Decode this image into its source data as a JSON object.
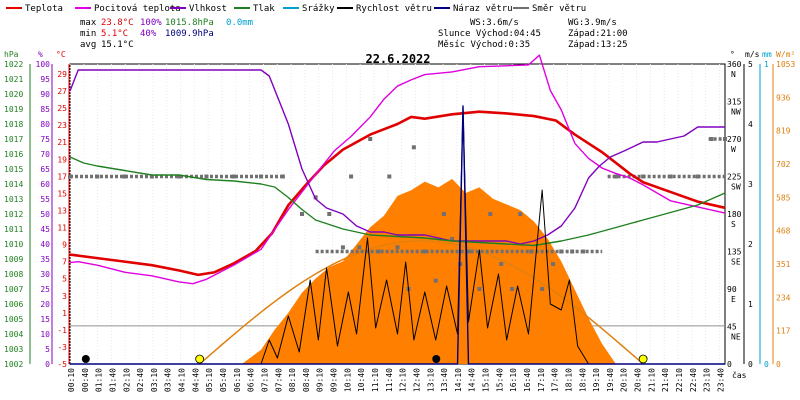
{
  "legend": [
    {
      "label": "Teplota",
      "color": "#e00000"
    },
    {
      "label": "Pocitová teplota",
      "color": "#e000e0"
    },
    {
      "label": "Vlhkost",
      "color": "#8000c0"
    },
    {
      "label": "Tlak",
      "color": "#208020"
    },
    {
      "label": "Srážky",
      "color": "#00a0d0"
    },
    {
      "label": "Rychlost větru",
      "color": "#000000"
    },
    {
      "label": "Náraz větru",
      "color": "#000080"
    },
    {
      "label": "Směr větru",
      "color": "#707070"
    }
  ],
  "stats": {
    "max_label": "max",
    "max_temp": "23.8°C",
    "max_hum": "100%",
    "max_press": "1015.8hPa",
    "max_rain": "0.0mm",
    "min_label": "min",
    "min_temp": "5.1°C",
    "min_hum": "40%",
    "min_press": "1009.9hPa",
    "avg_label": "avg",
    "avg_temp": "15.1°C"
  },
  "info": {
    "ws": "WS:3.6m/s",
    "wg": "WG:3.9m/s",
    "sun": "Slunce Východ:04:45",
    "sun_set": "Západ:21:00",
    "moon": "Měsíc Východ:0:35",
    "moon_set": "Západ:13:25"
  },
  "date_title": "22.6.2022",
  "axis_units": {
    "hpa": "hPa",
    "pct": "%",
    "degc": "°C",
    "deg": "°",
    "ms": "m/s",
    "mm": "mm",
    "wm2": "W/m²",
    "time": "čas"
  },
  "axes": {
    "pressure_ticks": [
      "1022",
      "1021",
      "1020",
      "1019",
      "1018",
      "1017",
      "1016",
      "1015",
      "1014",
      "1013",
      "1012",
      "1011",
      "1010",
      "1009",
      "1008",
      "1007",
      "1006",
      "1005",
      "1004",
      "1003",
      "1002"
    ],
    "humidity_ticks": [
      "100",
      "95",
      "90",
      "85",
      "80",
      "75",
      "70",
      "65",
      "60",
      "55",
      "50",
      "45",
      "40",
      "35",
      "30",
      "25",
      "20",
      "15",
      "10",
      "5",
      "0"
    ],
    "temp_ticks": [
      "29",
      "27",
      "25",
      "23",
      "21",
      "19",
      "17",
      "15",
      "13",
      "11",
      "9",
      "7",
      "5",
      "3",
      "1",
      "-1",
      "-3",
      "-5"
    ],
    "dir_ticks": [
      {
        "v": "360",
        "d": "N"
      },
      {
        "v": "315",
        "d": "NW"
      },
      {
        "v": "270",
        "d": "W"
      },
      {
        "v": "225",
        "d": "SW"
      },
      {
        "v": "180",
        "d": "S"
      },
      {
        "v": "135",
        "d": "SE"
      },
      {
        "v": "90",
        "d": "E"
      },
      {
        "v": "45",
        "d": "NE"
      },
      {
        "v": "0",
        "d": ""
      }
    ],
    "wind_ticks": [
      "5",
      "4",
      "3",
      "2",
      "1",
      "0"
    ],
    "rain_ticks": [
      "1",
      "0"
    ],
    "solar_ticks": [
      "1053",
      "936",
      "819",
      "702",
      "585",
      "468",
      "351",
      "234",
      "117",
      "0"
    ],
    "time_ticks": [
      "00:10",
      "00:40",
      "01:10",
      "01:40",
      "02:10",
      "02:40",
      "03:10",
      "03:40",
      "04:10",
      "04:40",
      "05:10",
      "05:40",
      "06:10",
      "06:40",
      "07:10",
      "07:40",
      "08:10",
      "08:40",
      "09:10",
      "09:40",
      "10:10",
      "10:40",
      "11:10",
      "11:40",
      "12:10",
      "12:40",
      "13:10",
      "13:40",
      "14:10",
      "14:40",
      "15:10",
      "15:40",
      "16:10",
      "16:40",
      "17:10",
      "17:40",
      "18:10",
      "18:40",
      "19:10",
      "19:40",
      "20:10",
      "20:40",
      "21:10",
      "21:40",
      "22:10",
      "22:40",
      "23:10",
      "23:40"
    ]
  },
  "chart_data": {
    "type": "line",
    "title": "22.6.2022",
    "x_unit": "hour",
    "xlim": [
      0,
      24
    ],
    "ylim_temp": [
      -5,
      29
    ],
    "ylim_humidity": [
      0,
      100
    ],
    "ylim_pressure": [
      1002,
      1022
    ],
    "ylim_wind": [
      0,
      5
    ],
    "ylim_direction": [
      0,
      360
    ],
    "ylim_solar": [
      0,
      1053
    ],
    "series": [
      {
        "name": "Teplota",
        "axis": "temp",
        "color": "#e00000",
        "points": [
          [
            0,
            7.4
          ],
          [
            1,
            7
          ],
          [
            2,
            6.6
          ],
          [
            3,
            6.2
          ],
          [
            4,
            5.6
          ],
          [
            4.7,
            5.1
          ],
          [
            5.3,
            5.4
          ],
          [
            6,
            6.4
          ],
          [
            6.8,
            7.8
          ],
          [
            7.4,
            9.8
          ],
          [
            8,
            13
          ],
          [
            8.7,
            15.5
          ],
          [
            9.3,
            17.5
          ],
          [
            10,
            19.3
          ],
          [
            11,
            21
          ],
          [
            12,
            22.2
          ],
          [
            12.5,
            23
          ],
          [
            13,
            22.8
          ],
          [
            14,
            23.3
          ],
          [
            15,
            23.6
          ],
          [
            16,
            23.4
          ],
          [
            17,
            23.1
          ],
          [
            17.8,
            22.6
          ],
          [
            18.5,
            21
          ],
          [
            19,
            20
          ],
          [
            19.5,
            19
          ],
          [
            20,
            17.8
          ],
          [
            20.5,
            16.6
          ],
          [
            21,
            15.6
          ],
          [
            22,
            14.5
          ],
          [
            23,
            13.4
          ],
          [
            24,
            12.7
          ]
        ]
      },
      {
        "name": "Pocitová teplota",
        "axis": "temp",
        "color": "#e000e0",
        "points": [
          [
            0,
            6.5
          ],
          [
            0.3,
            6.6
          ],
          [
            1,
            6.2
          ],
          [
            2,
            5.4
          ],
          [
            3,
            5
          ],
          [
            4,
            4.3
          ],
          [
            4.5,
            4.1
          ],
          [
            5,
            4.6
          ],
          [
            6,
            6.2
          ],
          [
            7,
            8
          ],
          [
            8,
            12.5
          ],
          [
            9,
            16.5
          ],
          [
            9.7,
            19.2
          ],
          [
            10.3,
            20.8
          ],
          [
            11,
            23
          ],
          [
            11.5,
            25
          ],
          [
            12,
            26.5
          ],
          [
            12.5,
            27.2
          ],
          [
            13,
            27.8
          ],
          [
            14,
            28.1
          ],
          [
            15,
            28.7
          ],
          [
            16,
            28.8
          ],
          [
            16.8,
            28.9
          ],
          [
            17.2,
            30
          ],
          [
            17.6,
            26
          ],
          [
            18,
            23.8
          ],
          [
            18.5,
            20
          ],
          [
            19,
            18.3
          ],
          [
            19.5,
            17.2
          ],
          [
            20,
            16.6
          ],
          [
            20.5,
            16.1
          ],
          [
            21,
            15.3
          ],
          [
            22,
            13.5
          ],
          [
            23,
            12.8
          ],
          [
            24,
            12.1
          ]
        ]
      },
      {
        "name": "Vlhkost",
        "axis": "humidity",
        "color": "#8000c0",
        "points": [
          [
            0,
            91
          ],
          [
            0.3,
            98
          ],
          [
            1,
            98
          ],
          [
            2,
            98
          ],
          [
            3,
            98
          ],
          [
            4,
            98
          ],
          [
            5,
            98
          ],
          [
            6,
            98
          ],
          [
            7,
            98
          ],
          [
            7.3,
            96
          ],
          [
            8,
            80
          ],
          [
            8.5,
            65
          ],
          [
            9,
            55
          ],
          [
            9.4,
            52
          ],
          [
            10,
            50
          ],
          [
            10.5,
            46
          ],
          [
            11,
            44
          ],
          [
            11.5,
            44
          ],
          [
            12,
            43
          ],
          [
            13,
            43
          ],
          [
            14,
            41
          ],
          [
            15,
            41
          ],
          [
            16,
            41
          ],
          [
            16.5,
            40
          ],
          [
            17,
            41
          ],
          [
            17.5,
            43
          ],
          [
            18,
            46
          ],
          [
            18.5,
            52
          ],
          [
            19,
            62
          ],
          [
            19.4,
            66
          ],
          [
            19.8,
            69
          ],
          [
            20.3,
            71
          ],
          [
            21,
            74
          ],
          [
            21.5,
            74
          ],
          [
            22,
            75
          ],
          [
            22.5,
            76
          ],
          [
            23,
            79
          ],
          [
            23.5,
            79
          ],
          [
            24,
            79
          ]
        ]
      },
      {
        "name": "Tlak",
        "axis": "pressure",
        "color": "#208020",
        "points": [
          [
            0,
            1015.8
          ],
          [
            0.5,
            1015.4
          ],
          [
            1,
            1015.2
          ],
          [
            2,
            1014.9
          ],
          [
            3,
            1014.6
          ],
          [
            4,
            1014.6
          ],
          [
            5,
            1014.3
          ],
          [
            6,
            1014.2
          ],
          [
            7,
            1014
          ],
          [
            7.5,
            1013.8
          ],
          [
            8,
            1013.1
          ],
          [
            8.5,
            1012.3
          ],
          [
            9,
            1011.6
          ],
          [
            9.5,
            1011.3
          ],
          [
            10,
            1011
          ],
          [
            11,
            1010.6
          ],
          [
            12,
            1010.5
          ],
          [
            13,
            1010.4
          ],
          [
            14,
            1010.2
          ],
          [
            15,
            1010.1
          ],
          [
            16,
            1010
          ],
          [
            17,
            1009.9
          ],
          [
            18,
            1010.2
          ],
          [
            19,
            1010.6
          ],
          [
            20,
            1011.1
          ],
          [
            21,
            1011.6
          ],
          [
            22,
            1012.1
          ],
          [
            23,
            1012.6
          ],
          [
            23.5,
            1013
          ],
          [
            24,
            1013.4
          ]
        ]
      },
      {
        "name": "Rychlost větru",
        "axis": "wind",
        "color": "#000000",
        "points": [
          [
            0,
            0
          ],
          [
            6,
            0
          ],
          [
            7,
            0
          ],
          [
            7.3,
            0.4
          ],
          [
            7.6,
            0.1
          ],
          [
            8,
            0.8
          ],
          [
            8.4,
            0.2
          ],
          [
            8.8,
            1.4
          ],
          [
            9.1,
            0.4
          ],
          [
            9.4,
            1.6
          ],
          [
            9.8,
            0.3
          ],
          [
            10.2,
            1.2
          ],
          [
            10.5,
            0.5
          ],
          [
            10.9,
            2.1
          ],
          [
            11.2,
            0.6
          ],
          [
            11.6,
            1.4
          ],
          [
            12,
            0.5
          ],
          [
            12.3,
            1.7
          ],
          [
            12.6,
            0.4
          ],
          [
            13,
            1.2
          ],
          [
            13.4,
            0.4
          ],
          [
            13.8,
            1.3
          ],
          [
            14.2,
            0.5
          ],
          [
            14.4,
            4.3
          ],
          [
            14.6,
            0.7
          ],
          [
            15,
            1.9
          ],
          [
            15.3,
            0.6
          ],
          [
            15.7,
            1.5
          ],
          [
            16,
            0.4
          ],
          [
            16.4,
            1.3
          ],
          [
            16.8,
            0.5
          ],
          [
            17.3,
            2.9
          ],
          [
            17.6,
            1
          ],
          [
            18,
            0.9
          ],
          [
            18.3,
            1.4
          ],
          [
            18.6,
            0.3
          ],
          [
            19,
            0
          ],
          [
            24,
            0
          ]
        ]
      },
      {
        "name": "Náraz větru",
        "axis": "wind",
        "color": "#000080",
        "points": [
          [
            0,
            0
          ],
          [
            14.2,
            0
          ],
          [
            14.4,
            4.3
          ],
          [
            14.6,
            0
          ],
          [
            24,
            0
          ]
        ]
      }
    ],
    "area_series": [
      {
        "name": "solar_radiation",
        "axis": "solar",
        "color": "#ff8000",
        "points": [
          [
            6.3,
            0
          ],
          [
            7,
            50
          ],
          [
            7.5,
            120
          ],
          [
            8,
            180
          ],
          [
            8.5,
            250
          ],
          [
            9,
            300
          ],
          [
            9.5,
            340
          ],
          [
            10,
            360
          ],
          [
            10.5,
            420
          ],
          [
            11,
            480
          ],
          [
            11.5,
            520
          ],
          [
            12,
            590
          ],
          [
            12.5,
            610
          ],
          [
            13,
            640
          ],
          [
            13.5,
            620
          ],
          [
            14,
            650
          ],
          [
            14.5,
            600
          ],
          [
            15,
            620
          ],
          [
            15.5,
            580
          ],
          [
            16,
            560
          ],
          [
            16.5,
            540
          ],
          [
            17,
            500
          ],
          [
            17.5,
            440
          ],
          [
            18,
            360
          ],
          [
            18.5,
            260
          ],
          [
            19,
            160
          ],
          [
            19.5,
            70
          ],
          [
            20,
            0
          ]
        ]
      }
    ],
    "clear_sky_curve": {
      "axis": "solar",
      "color": "#e08010",
      "rise": 4.75,
      "set": 21.0,
      "peak": 432
    },
    "wind_direction_points": [
      [
        0,
        225
      ],
      [
        1,
        225
      ],
      [
        2,
        225
      ],
      [
        3,
        225
      ],
      [
        4,
        225
      ],
      [
        5,
        225
      ],
      [
        6,
        225
      ],
      [
        7,
        225
      ],
      [
        7.8,
        225
      ],
      [
        8.5,
        180
      ],
      [
        9,
        200
      ],
      [
        9.5,
        180
      ],
      [
        10,
        140
      ],
      [
        10.3,
        225
      ],
      [
        10.6,
        140
      ],
      [
        11,
        270
      ],
      [
        11.3,
        135
      ],
      [
        11.7,
        225
      ],
      [
        12,
        140
      ],
      [
        12.4,
        90
      ],
      [
        12.6,
        260
      ],
      [
        13,
        135
      ],
      [
        13.4,
        100
      ],
      [
        13.7,
        180
      ],
      [
        14,
        150
      ],
      [
        14.3,
        120
      ],
      [
        14.6,
        135
      ],
      [
        15,
        90
      ],
      [
        15.4,
        180
      ],
      [
        15.8,
        120
      ],
      [
        16.2,
        90
      ],
      [
        16.5,
        180
      ],
      [
        16.9,
        135
      ],
      [
        17.3,
        90
      ],
      [
        17.7,
        120
      ],
      [
        18,
        135
      ],
      [
        18.4,
        135
      ],
      [
        18.8,
        135
      ],
      [
        20,
        225
      ],
      [
        21,
        225
      ],
      [
        22,
        225
      ],
      [
        23,
        225
      ],
      [
        23.5,
        270
      ],
      [
        24,
        270
      ]
    ],
    "sun_markers": [
      4.75,
      21.0
    ],
    "moon_markers": [
      0.58,
      13.42
    ]
  }
}
